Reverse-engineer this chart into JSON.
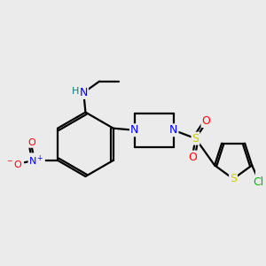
{
  "background_color": "#ebebeb",
  "atom_colors": {
    "C": "#000000",
    "N": "#0000ff",
    "O": "#ff0000",
    "S": "#cccc00",
    "Cl": "#00bb00",
    "H": "#008080"
  },
  "bond_color": "#000000",
  "bond_lw": 1.6,
  "fontsize": 9
}
